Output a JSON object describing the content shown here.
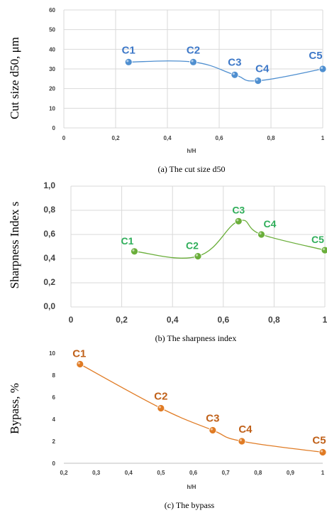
{
  "chart_data": [
    {
      "type": "line",
      "caption": "(a) The cut size d50",
      "xlabel": "h/H",
      "ylabel": "Cut size d50, μm",
      "xlim": [
        0,
        1
      ],
      "ylim": [
        0,
        60
      ],
      "xticks": [
        "0",
        "0,2",
        "0,4",
        "0,6",
        "0,8",
        "1"
      ],
      "yticks": [
        "0",
        "10",
        "20",
        "30",
        "40",
        "50",
        "60"
      ],
      "grid": true,
      "color": "#4F8FD0",
      "points": [
        {
          "label": "C1",
          "x": 0.25,
          "y": 33.5
        },
        {
          "label": "C2",
          "x": 0.5,
          "y": 33.5
        },
        {
          "label": "C3",
          "x": 0.66,
          "y": 27
        },
        {
          "label": "C4",
          "x": 0.75,
          "y": 24
        },
        {
          "label": "C5",
          "x": 1.0,
          "y": 30
        }
      ]
    },
    {
      "type": "line",
      "caption": "(b) The sharpness index",
      "xlabel": "",
      "ylabel": "Sharpness Index s",
      "xlim": [
        0,
        1
      ],
      "ylim": [
        0,
        1
      ],
      "xticks": [
        "0",
        "0,2",
        "0,4",
        "0,6",
        "0,8",
        "1"
      ],
      "yticks": [
        "0,0",
        "0,2",
        "0,4",
        "0,6",
        "0,8",
        "1,0"
      ],
      "grid": true,
      "color": "#6AAE3A",
      "points": [
        {
          "label": "C1",
          "x": 0.25,
          "y": 0.46
        },
        {
          "label": "C2",
          "x": 0.5,
          "y": 0.42
        },
        {
          "label": "C3",
          "x": 0.66,
          "y": 0.71
        },
        {
          "label": "C4",
          "x": 0.75,
          "y": 0.6
        },
        {
          "label": "C5",
          "x": 1.0,
          "y": 0.47
        }
      ]
    },
    {
      "type": "line",
      "caption": "(c) The bypass",
      "xlabel": "h/H",
      "ylabel": "Bypass, %",
      "xlim": [
        0.2,
        1
      ],
      "ylim": [
        0,
        10
      ],
      "xticks": [
        "0,2",
        "0,3",
        "0,4",
        "0,5",
        "0,6",
        "0,7",
        "0,8",
        "0,9",
        "1"
      ],
      "yticks": [
        "0",
        "2",
        "4",
        "6",
        "8",
        "10"
      ],
      "grid": false,
      "color": "#E07B24",
      "points": [
        {
          "label": "C1",
          "x": 0.25,
          "y": 9
        },
        {
          "label": "C2",
          "x": 0.5,
          "y": 5
        },
        {
          "label": "C3",
          "x": 0.66,
          "y": 3
        },
        {
          "label": "C4",
          "x": 0.75,
          "y": 2
        },
        {
          "label": "C5",
          "x": 1.0,
          "y": 1
        }
      ]
    }
  ]
}
